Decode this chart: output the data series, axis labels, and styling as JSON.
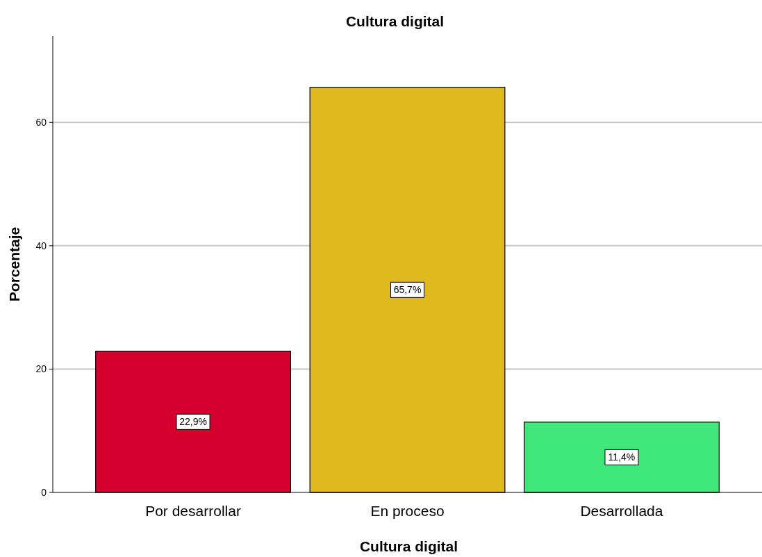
{
  "chart_data": {
    "type": "bar",
    "title": "Cultura digital",
    "xlabel": "Cultura digital",
    "ylabel": "Porcentaje",
    "categories": [
      "Por desarrollar",
      "En proceso",
      "Desarrollada"
    ],
    "values": [
      22.9,
      65.7,
      11.4
    ],
    "colors": [
      "#d6002f",
      "#dfb91d",
      "#40e87c"
    ],
    "value_labels": [
      "22,9%",
      "65,7%",
      "11,4%"
    ],
    "ylim": [
      0,
      74
    ],
    "yticks": [
      0,
      20,
      40,
      60
    ],
    "grid": "y"
  }
}
